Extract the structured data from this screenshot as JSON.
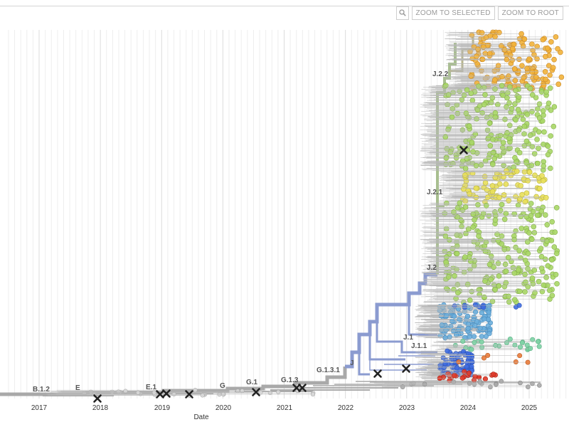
{
  "toolbar": {
    "zoom_selected_label": "ZOOM TO SELECTED",
    "zoom_root_label": "ZOOM TO ROOT"
  },
  "axis": {
    "title": "Date",
    "ticks": [
      "2017",
      "2018",
      "2019",
      "2020",
      "2021",
      "2022",
      "2023",
      "2024",
      "2025"
    ]
  },
  "clade_labels": [
    "B.1.2",
    "E",
    "E.1",
    "G",
    "G.1",
    "G.1.3",
    "G.1.3.1",
    "J",
    "J.1",
    "J.1.1",
    "J.2",
    "J.2.1",
    "J.2.2"
  ],
  "colors": {
    "trunk": "#a9a9a9",
    "j_branch": "#8b9bd0",
    "j2_branch": "#a8bf8f",
    "j22_branch": "#b7b58e",
    "tip_orange": "#f2b23a",
    "tip_green": "#a9d766",
    "tip_yellow": "#e9e05a",
    "tip_lightblue": "#6aaedc",
    "tip_blue": "#3e6be0",
    "tip_teal": "#7ed3a5",
    "tip_red": "#e03a2a",
    "tip_orangered": "#e87a3a",
    "tip_gray": "#a8a8a8",
    "mutation_marker": "#222222"
  }
}
